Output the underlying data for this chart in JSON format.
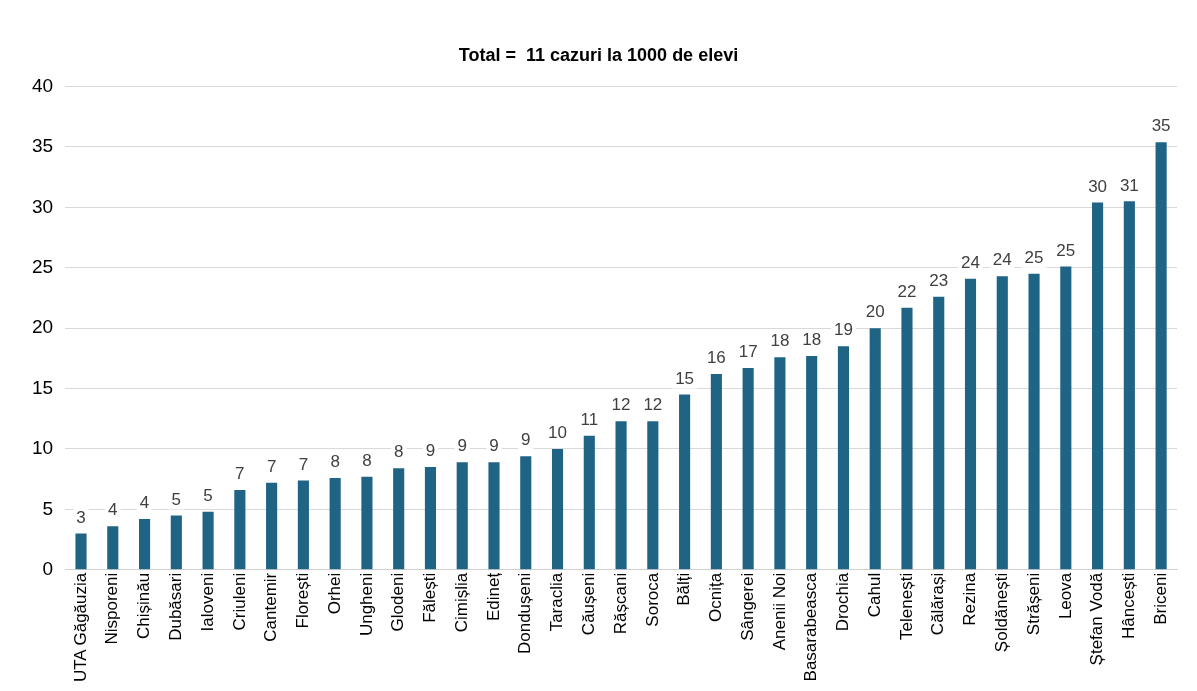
{
  "chart_data": {
    "type": "bar",
    "title": "Total =  11 cazuri la 1000 de elevi",
    "categories": [
      "UTA Găgăuzia",
      "Nisporeni",
      "Chișinău",
      "Dubăsari",
      "Ialoveni",
      "Criuleni",
      "Cantemir",
      "Florești",
      "Orhei",
      "Ungheni",
      "Glodeni",
      "Fălești",
      "Cimișlia",
      "Edineț",
      "Dondușeni",
      "Taraclia",
      "Căușeni",
      "Rășcani",
      "Soroca",
      "Bălți",
      "Ocnița",
      "Sângerei",
      "Anenii Noi",
      "Basarabeasca",
      "Drochia",
      "Cahul",
      "Telenești",
      "Călărași",
      "Rezina",
      "Șoldănești",
      "Strășeni",
      "Leova",
      "Ștefan Vodă",
      "Hâncești",
      "Briceni"
    ],
    "values": [
      3.0,
      3.6,
      4.2,
      4.5,
      4.8,
      6.6,
      7.2,
      7.4,
      7.6,
      7.7,
      8.4,
      8.5,
      8.9,
      8.9,
      9.4,
      10.0,
      11.1,
      12.3,
      12.3,
      14.5,
      16.2,
      16.7,
      17.6,
      17.7,
      18.5,
      20.0,
      21.7,
      22.6,
      24.1,
      24.3,
      24.5,
      25.1,
      30.4,
      30.5,
      35.4
    ],
    "value_labels": [
      "3",
      "4",
      "4",
      "5",
      "5",
      "7",
      "7",
      "7",
      "8",
      "8",
      "8",
      "9",
      "9",
      "9",
      "9",
      "10",
      "11",
      "12",
      "12",
      "15",
      "16",
      "17",
      "18",
      "18",
      "19",
      "20",
      "22",
      "23",
      "24",
      "24",
      "25",
      "25",
      "30",
      "31",
      "35"
    ],
    "color": "#1f6385",
    "ylim": [
      0,
      40
    ],
    "yticks": [
      0,
      5,
      10,
      15,
      20,
      25,
      30,
      35,
      40
    ],
    "grid": "y",
    "legend": false
  }
}
